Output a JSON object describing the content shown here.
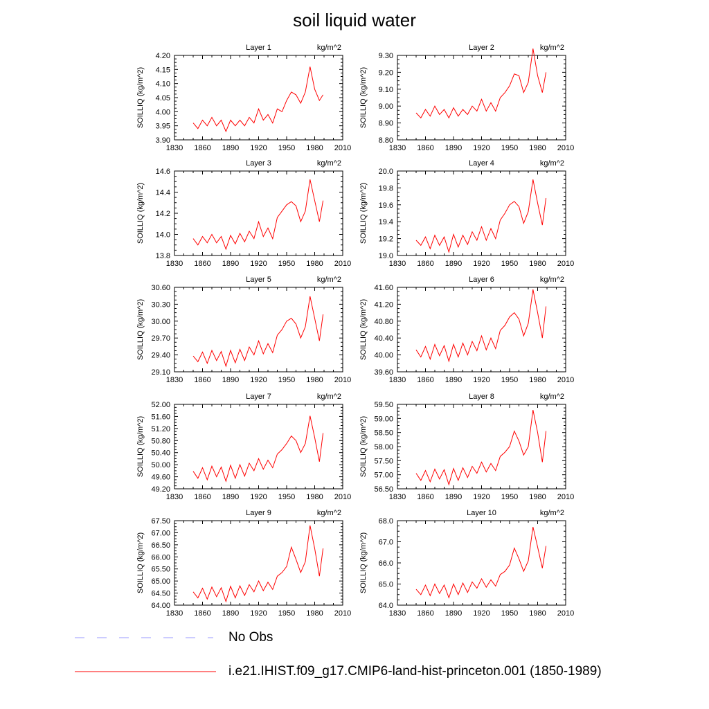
{
  "title": "soil liquid water",
  "legend": {
    "items": [
      {
        "label": "No Obs",
        "color": "#9999ff",
        "style": "dashed"
      },
      {
        "label": "i.e21.IHIST.f09_g17.CMIP6-land-hist-princeton.001 (1850-1989)",
        "color": "#ff0000",
        "style": "solid"
      }
    ]
  },
  "chart_data": [
    {
      "type": "line",
      "title": "Layer 1",
      "units": "kg/m^2",
      "ylabel": "SOILLIQ  (kg/m^2)",
      "xlim": [
        1830,
        2010
      ],
      "xticks": [
        1830,
        1860,
        1890,
        1920,
        1950,
        1980,
        2010
      ],
      "ylim": [
        3.9,
        4.2
      ],
      "yticks": [
        "3.90",
        "3.95",
        "4.00",
        "4.05",
        "4.10",
        "4.15",
        "4.20"
      ],
      "series": [
        {
          "color": "#ff0000",
          "x": [
            1850,
            1855,
            1860,
            1865,
            1870,
            1875,
            1880,
            1885,
            1890,
            1895,
            1900,
            1905,
            1910,
            1915,
            1920,
            1925,
            1930,
            1935,
            1940,
            1945,
            1950,
            1955,
            1960,
            1965,
            1970,
            1975,
            1980,
            1985,
            1989
          ],
          "values": [
            3.96,
            3.94,
            3.97,
            3.95,
            3.98,
            3.95,
            3.97,
            3.93,
            3.97,
            3.95,
            3.97,
            3.95,
            3.98,
            3.96,
            4.01,
            3.97,
            3.99,
            3.96,
            4.01,
            4.0,
            4.04,
            4.07,
            4.06,
            4.03,
            4.07,
            4.16,
            4.08,
            4.04,
            4.06
          ]
        }
      ]
    },
    {
      "type": "line",
      "title": "Layer 2",
      "units": "kg/m^2",
      "ylabel": "SOILLIQ  (kg/m^2)",
      "xlim": [
        1830,
        2010
      ],
      "xticks": [
        1830,
        1860,
        1890,
        1920,
        1950,
        1980,
        2010
      ],
      "ylim": [
        8.8,
        9.3
      ],
      "yticks": [
        "8.80",
        "8.90",
        "9.00",
        "9.10",
        "9.20",
        "9.30"
      ],
      "series": [
        {
          "color": "#ff0000",
          "x": [
            1850,
            1855,
            1860,
            1865,
            1870,
            1875,
            1880,
            1885,
            1890,
            1895,
            1900,
            1905,
            1910,
            1915,
            1920,
            1925,
            1930,
            1935,
            1940,
            1945,
            1950,
            1955,
            1960,
            1965,
            1970,
            1975,
            1980,
            1985,
            1989
          ],
          "values": [
            8.96,
            8.93,
            8.98,
            8.94,
            9.0,
            8.95,
            8.98,
            8.93,
            8.99,
            8.94,
            8.98,
            8.95,
            9.0,
            8.97,
            9.04,
            8.97,
            9.02,
            8.97,
            9.05,
            9.08,
            9.12,
            9.19,
            9.18,
            9.08,
            9.14,
            9.34,
            9.18,
            9.08,
            9.2
          ]
        }
      ]
    },
    {
      "type": "line",
      "title": "Layer 3",
      "units": "kg/m^2",
      "ylabel": "SOILLIQ  (kg/m^2)",
      "xlim": [
        1830,
        2010
      ],
      "xticks": [
        1830,
        1860,
        1890,
        1920,
        1950,
        1980,
        2010
      ],
      "ylim": [
        13.8,
        14.6
      ],
      "yticks": [
        "13.8",
        "14.0",
        "14.2",
        "14.4",
        "14.6"
      ],
      "series": [
        {
          "color": "#ff0000",
          "x": [
            1850,
            1855,
            1860,
            1865,
            1870,
            1875,
            1880,
            1885,
            1890,
            1895,
            1900,
            1905,
            1910,
            1915,
            1920,
            1925,
            1930,
            1935,
            1940,
            1945,
            1950,
            1955,
            1960,
            1965,
            1970,
            1975,
            1980,
            1985,
            1989
          ],
          "values": [
            13.96,
            13.9,
            13.98,
            13.92,
            14.0,
            13.92,
            13.98,
            13.86,
            13.99,
            13.91,
            14.01,
            13.93,
            14.03,
            13.96,
            14.12,
            13.98,
            14.06,
            13.96,
            14.16,
            14.22,
            14.28,
            14.31,
            14.27,
            14.12,
            14.22,
            14.52,
            14.32,
            14.12,
            14.32
          ]
        }
      ]
    },
    {
      "type": "line",
      "title": "Layer 4",
      "units": "kg/m^2",
      "ylabel": "SOILLIQ  (kg/m^2)",
      "xlim": [
        1830,
        2010
      ],
      "xticks": [
        1830,
        1860,
        1890,
        1920,
        1950,
        1980,
        2010
      ],
      "ylim": [
        19.0,
        20.0
      ],
      "yticks": [
        "19.0",
        "19.2",
        "19.4",
        "19.6",
        "19.8",
        "20.0"
      ],
      "series": [
        {
          "color": "#ff0000",
          "x": [
            1850,
            1855,
            1860,
            1865,
            1870,
            1875,
            1880,
            1885,
            1890,
            1895,
            1900,
            1905,
            1910,
            1915,
            1920,
            1925,
            1930,
            1935,
            1940,
            1945,
            1950,
            1955,
            1960,
            1965,
            1970,
            1975,
            1980,
            1985,
            1989
          ],
          "values": [
            19.18,
            19.12,
            19.22,
            19.08,
            19.24,
            19.12,
            19.22,
            19.04,
            19.25,
            19.1,
            19.24,
            19.13,
            19.28,
            19.18,
            19.34,
            19.18,
            19.32,
            19.2,
            19.42,
            19.5,
            19.6,
            19.64,
            19.58,
            19.38,
            19.52,
            19.9,
            19.62,
            19.36,
            19.68
          ]
        }
      ]
    },
    {
      "type": "line",
      "title": "Layer 5",
      "units": "kg/m^2",
      "ylabel": "SOILLIQ  (kg/m^2)",
      "xlim": [
        1830,
        2010
      ],
      "xticks": [
        1830,
        1860,
        1890,
        1920,
        1950,
        1980,
        2010
      ],
      "ylim": [
        29.1,
        30.6
      ],
      "yticks": [
        "29.10",
        "29.40",
        "29.70",
        "30.00",
        "30.30",
        "30.60"
      ],
      "series": [
        {
          "color": "#ff0000",
          "x": [
            1850,
            1855,
            1860,
            1865,
            1870,
            1875,
            1880,
            1885,
            1890,
            1895,
            1900,
            1905,
            1910,
            1915,
            1920,
            1925,
            1930,
            1935,
            1940,
            1945,
            1950,
            1955,
            1960,
            1965,
            1970,
            1975,
            1980,
            1985,
            1989
          ],
          "values": [
            29.38,
            29.28,
            29.45,
            29.25,
            29.48,
            29.3,
            29.46,
            29.2,
            29.48,
            29.26,
            29.5,
            29.3,
            29.54,
            29.4,
            29.65,
            29.42,
            29.6,
            29.44,
            29.75,
            29.85,
            30.0,
            30.05,
            29.95,
            29.7,
            29.9,
            30.44,
            30.05,
            29.65,
            30.12
          ]
        }
      ]
    },
    {
      "type": "line",
      "title": "Layer 6",
      "units": "kg/m^2",
      "ylabel": "SOILLIQ  (kg/m^2)",
      "xlim": [
        1830,
        2010
      ],
      "xticks": [
        1830,
        1860,
        1890,
        1920,
        1950,
        1980,
        2010
      ],
      "ylim": [
        39.6,
        41.6
      ],
      "yticks": [
        "39.60",
        "40.00",
        "40.40",
        "40.80",
        "41.20",
        "41.60"
      ],
      "series": [
        {
          "color": "#ff0000",
          "x": [
            1850,
            1855,
            1860,
            1865,
            1870,
            1875,
            1880,
            1885,
            1890,
            1895,
            1900,
            1905,
            1910,
            1915,
            1920,
            1925,
            1930,
            1935,
            1940,
            1945,
            1950,
            1955,
            1960,
            1965,
            1970,
            1975,
            1980,
            1985,
            1989
          ],
          "values": [
            40.12,
            39.95,
            40.2,
            39.9,
            40.25,
            39.98,
            40.22,
            39.85,
            40.25,
            39.95,
            40.28,
            40.0,
            40.32,
            40.1,
            40.45,
            40.12,
            40.4,
            40.15,
            40.58,
            40.7,
            40.9,
            41.0,
            40.85,
            40.45,
            40.75,
            41.55,
            41.0,
            40.4,
            41.15
          ]
        }
      ]
    },
    {
      "type": "line",
      "title": "Layer 7",
      "units": "kg/m^2",
      "ylabel": "SOILLIQ  (kg/m^2)",
      "xlim": [
        1830,
        2010
      ],
      "xticks": [
        1830,
        1860,
        1890,
        1920,
        1950,
        1980,
        2010
      ],
      "ylim": [
        49.2,
        52.0
      ],
      "yticks": [
        "49.20",
        "49.60",
        "50.00",
        "50.40",
        "50.80",
        "51.20",
        "51.60",
        "52.00"
      ],
      "series": [
        {
          "color": "#ff0000",
          "x": [
            1850,
            1855,
            1860,
            1865,
            1870,
            1875,
            1880,
            1885,
            1890,
            1895,
            1900,
            1905,
            1910,
            1915,
            1920,
            1925,
            1930,
            1935,
            1940,
            1945,
            1950,
            1955,
            1960,
            1965,
            1970,
            1975,
            1980,
            1985,
            1989
          ],
          "values": [
            49.78,
            49.55,
            49.9,
            49.5,
            49.95,
            49.6,
            49.92,
            49.45,
            49.98,
            49.55,
            50.0,
            49.62,
            50.05,
            49.8,
            50.2,
            49.85,
            50.15,
            49.9,
            50.35,
            50.5,
            50.7,
            50.95,
            50.8,
            50.4,
            50.7,
            51.62,
            50.9,
            50.1,
            51.05
          ]
        }
      ]
    },
    {
      "type": "line",
      "title": "Layer 8",
      "units": "kg/m^2",
      "ylabel": "SOILLIQ  (kg/m^2)",
      "xlim": [
        1830,
        2010
      ],
      "xticks": [
        1830,
        1860,
        1890,
        1920,
        1950,
        1980,
        2010
      ],
      "ylim": [
        56.5,
        59.5
      ],
      "yticks": [
        "56.50",
        "57.00",
        "57.50",
        "58.00",
        "58.50",
        "59.00",
        "59.50"
      ],
      "series": [
        {
          "color": "#ff0000",
          "x": [
            1850,
            1855,
            1860,
            1865,
            1870,
            1875,
            1880,
            1885,
            1890,
            1895,
            1900,
            1905,
            1910,
            1915,
            1920,
            1925,
            1930,
            1935,
            1940,
            1945,
            1950,
            1955,
            1960,
            1965,
            1970,
            1975,
            1980,
            1985,
            1989
          ],
          "values": [
            57.05,
            56.8,
            57.15,
            56.75,
            57.2,
            56.85,
            57.18,
            56.65,
            57.22,
            56.8,
            57.25,
            56.9,
            57.3,
            57.05,
            57.45,
            57.1,
            57.4,
            57.15,
            57.65,
            57.8,
            58.0,
            58.55,
            58.2,
            57.7,
            58.0,
            59.3,
            58.5,
            57.45,
            58.55
          ]
        }
      ]
    },
    {
      "type": "line",
      "title": "Layer 9",
      "units": "kg/m^2",
      "ylabel": "SOILLIQ  (kg/m^2)",
      "xlim": [
        1830,
        2010
      ],
      "xticks": [
        1830,
        1860,
        1890,
        1920,
        1950,
        1980,
        2010
      ],
      "ylim": [
        64.0,
        67.5
      ],
      "yticks": [
        "64.00",
        "64.50",
        "65.00",
        "65.50",
        "66.00",
        "66.50",
        "67.00",
        "67.50"
      ],
      "series": [
        {
          "color": "#ff0000",
          "x": [
            1850,
            1855,
            1860,
            1865,
            1870,
            1875,
            1880,
            1885,
            1890,
            1895,
            1900,
            1905,
            1910,
            1915,
            1920,
            1925,
            1930,
            1935,
            1940,
            1945,
            1950,
            1955,
            1960,
            1965,
            1970,
            1975,
            1980,
            1985,
            1989
          ],
          "values": [
            64.55,
            64.3,
            64.7,
            64.25,
            64.75,
            64.35,
            64.72,
            64.15,
            64.78,
            64.3,
            64.8,
            64.4,
            64.85,
            64.55,
            65.0,
            64.6,
            64.95,
            64.65,
            65.2,
            65.35,
            65.6,
            66.4,
            65.9,
            65.35,
            65.8,
            67.3,
            66.35,
            65.2,
            66.35
          ]
        }
      ]
    },
    {
      "type": "line",
      "title": "Layer 10",
      "units": "kg/m^2",
      "ylabel": "SOILLIQ  (kg/m^2)",
      "xlim": [
        1830,
        2010
      ],
      "xticks": [
        1830,
        1860,
        1890,
        1920,
        1950,
        1980,
        2010
      ],
      "ylim": [
        64.0,
        68.0
      ],
      "yticks": [
        "64.0",
        "65.0",
        "66.0",
        "67.0",
        "68.0"
      ],
      "series": [
        {
          "color": "#ff0000",
          "x": [
            1850,
            1855,
            1860,
            1865,
            1870,
            1875,
            1880,
            1885,
            1890,
            1895,
            1900,
            1905,
            1910,
            1915,
            1920,
            1925,
            1930,
            1935,
            1940,
            1945,
            1950,
            1955,
            1960,
            1965,
            1970,
            1975,
            1980,
            1985,
            1989
          ],
          "values": [
            64.75,
            64.5,
            64.95,
            64.45,
            65.0,
            64.55,
            64.95,
            64.35,
            65.0,
            64.5,
            65.05,
            64.6,
            65.1,
            64.8,
            65.25,
            64.85,
            65.2,
            64.9,
            65.45,
            65.6,
            65.9,
            66.7,
            66.2,
            65.6,
            66.1,
            67.7,
            66.75,
            65.75,
            66.8
          ]
        }
      ]
    }
  ]
}
